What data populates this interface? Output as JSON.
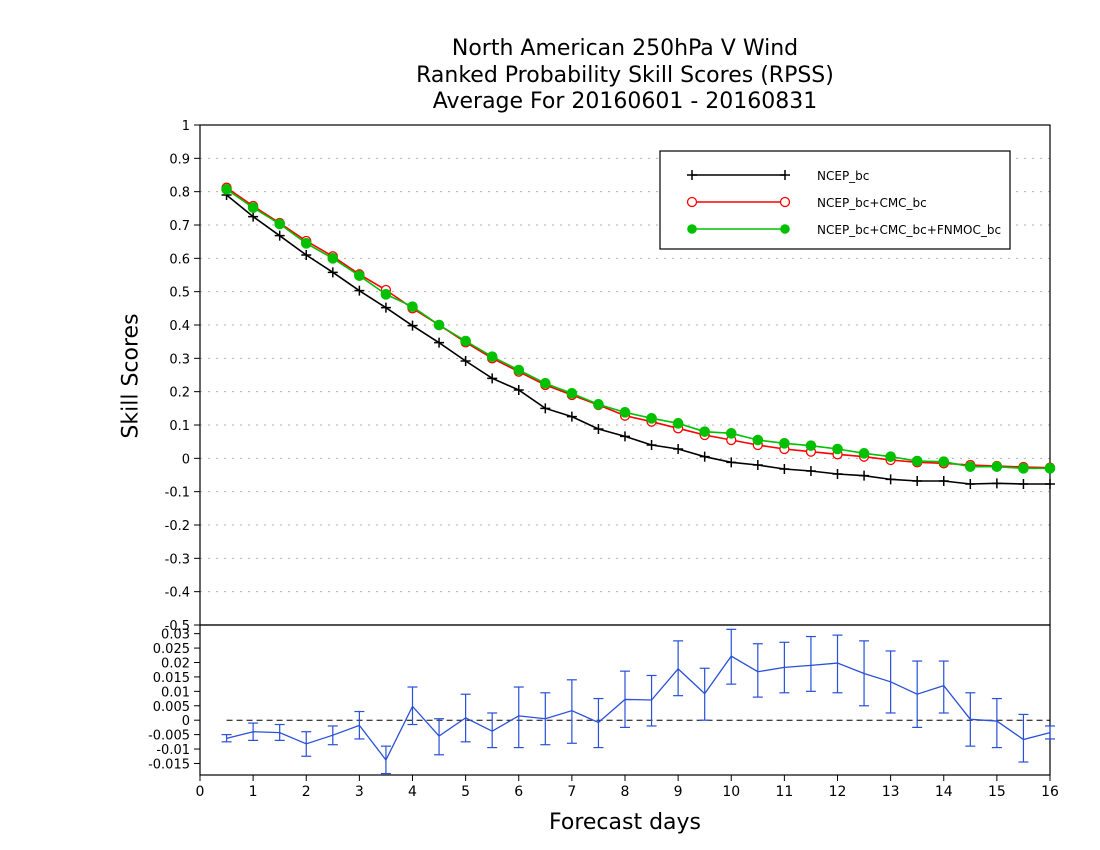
{
  "title": {
    "line1": "North American 250hPa V Wind",
    "line2": "Ranked Probability Skill Scores (RPSS)",
    "line3": "Average For 20160601 - 20160831"
  },
  "chart_data": [
    {
      "type": "line",
      "title": "North American 250hPa V Wind / Ranked Probability Skill Scores (RPSS) / Average For 20160601 - 20160831",
      "xlabel": "Forecast days",
      "ylabel": "Skill Scores",
      "xlim": [
        0,
        16
      ],
      "ylim": [
        -0.5,
        1
      ],
      "yticks": [
        "1",
        "0.9",
        "0.8",
        "0.7",
        "0.6",
        "0.5",
        "0.4",
        "0.3",
        "0.2",
        "0.1",
        "0",
        "-0.1",
        "-0.2",
        "-0.3",
        "-0.4",
        "-0.5"
      ],
      "grid": true,
      "legend_position": "top-right",
      "x": [
        0.5,
        1,
        1.5,
        2,
        2.5,
        3,
        3.5,
        4,
        4.5,
        5,
        5.5,
        6,
        6.5,
        7,
        7.5,
        8,
        8.5,
        9,
        9.5,
        10,
        10.5,
        11,
        11.5,
        12,
        12.5,
        13,
        13.5,
        14,
        14.5,
        15,
        15.5,
        16
      ],
      "series": [
        {
          "name": "NCEP_bc",
          "color": "#000000",
          "marker": "plus",
          "values": [
            0.79,
            0.725,
            0.668,
            0.61,
            0.558,
            0.503,
            0.452,
            0.398,
            0.347,
            0.292,
            0.24,
            0.205,
            0.15,
            0.125,
            0.088,
            0.066,
            0.04,
            0.028,
            0.005,
            -0.012,
            -0.02,
            -0.032,
            -0.038,
            -0.047,
            -0.052,
            -0.063,
            -0.068,
            -0.068,
            -0.077,
            -0.075,
            -0.077,
            -0.077
          ]
        },
        {
          "name": "NCEP_bc+CMC_bc",
          "color": "#ff0000",
          "marker": "open-circle",
          "values": [
            0.812,
            0.757,
            0.706,
            0.652,
            0.606,
            0.552,
            0.505,
            0.45,
            0.4,
            0.348,
            0.3,
            0.26,
            0.22,
            0.19,
            0.16,
            0.128,
            0.11,
            0.09,
            0.07,
            0.055,
            0.04,
            0.028,
            0.02,
            0.012,
            0.005,
            -0.005,
            -0.012,
            -0.015,
            -0.02,
            -0.023,
            -0.026,
            -0.028
          ]
        },
        {
          "name": "NCEP_bc+CMC_bc+FNMOC_bc",
          "color": "#00c000",
          "marker": "filled-circle",
          "values": [
            0.807,
            0.752,
            0.703,
            0.645,
            0.6,
            0.548,
            0.492,
            0.455,
            0.4,
            0.352,
            0.305,
            0.265,
            0.225,
            0.195,
            0.162,
            0.138,
            0.12,
            0.105,
            0.08,
            0.075,
            0.055,
            0.045,
            0.038,
            0.028,
            0.015,
            0.005,
            -0.008,
            -0.01,
            -0.025,
            -0.025,
            -0.03,
            -0.03
          ]
        }
      ]
    },
    {
      "type": "line",
      "xlim": [
        0,
        16
      ],
      "ylim": [
        -0.019,
        0.033
      ],
      "yticks": [
        "0.03",
        "0.025",
        "0.02",
        "0.015",
        "0.01",
        "0.005",
        "0",
        "-0.005",
        "-0.01",
        "-0.015"
      ],
      "top_tick": "-0.5",
      "xticks": [
        "0",
        "1",
        "2",
        "3",
        "4",
        "5",
        "6",
        "7",
        "8",
        "9",
        "10",
        "11",
        "12",
        "13",
        "14",
        "15",
        "16"
      ],
      "series": [
        {
          "name": "",
          "color": "#2850d8",
          "x": [
            0.5,
            1,
            1.5,
            2,
            2.5,
            3,
            3.5,
            4,
            4.5,
            5,
            5.5,
            6,
            6.5,
            7,
            7.5,
            8,
            8.5,
            9,
            9.5,
            10,
            10.5,
            11,
            11.5,
            12,
            12.5,
            13,
            13.5,
            14,
            14.5,
            15,
            15.5,
            16
          ],
          "values": [
            -0.0063,
            -0.004,
            -0.0043,
            -0.0082,
            -0.0052,
            -0.0018,
            -0.0138,
            0.0048,
            -0.0055,
            0.0008,
            -0.0038,
            0.0015,
            0.0005,
            0.0033,
            -0.0008,
            0.0072,
            0.007,
            0.0178,
            0.0092,
            0.0222,
            0.0168,
            0.0183,
            0.019,
            0.0198,
            0.0162,
            0.0133,
            0.009,
            0.012,
            0.0003,
            -0.0003,
            -0.0067,
            -0.0043
          ],
          "error_low": [
            -0.0075,
            -0.007,
            -0.007,
            -0.0125,
            -0.0085,
            -0.0065,
            -0.0185,
            -0.0015,
            -0.012,
            -0.0075,
            -0.0095,
            -0.0095,
            -0.0085,
            -0.008,
            -0.0095,
            -0.0025,
            -0.002,
            0.0085,
            0,
            0.0125,
            0.008,
            0.0095,
            0.01,
            0.0095,
            0.005,
            0.0025,
            -0.0025,
            0.0025,
            -0.009,
            -0.0095,
            -0.0145,
            -0.0065
          ],
          "error_high": [
            -0.005,
            -0.001,
            -0.0015,
            -0.004,
            -0.002,
            0.003,
            -0.009,
            0.0115,
            0.0005,
            0.009,
            0.0025,
            0.0115,
            0.0095,
            0.014,
            0.0075,
            0.017,
            0.0155,
            0.0275,
            0.018,
            0.0315,
            0.0265,
            0.027,
            0.029,
            0.0295,
            0.0275,
            0.024,
            0.0205,
            0.0205,
            0.0095,
            0.0075,
            0.002,
            -0.002
          ]
        }
      ]
    }
  ]
}
